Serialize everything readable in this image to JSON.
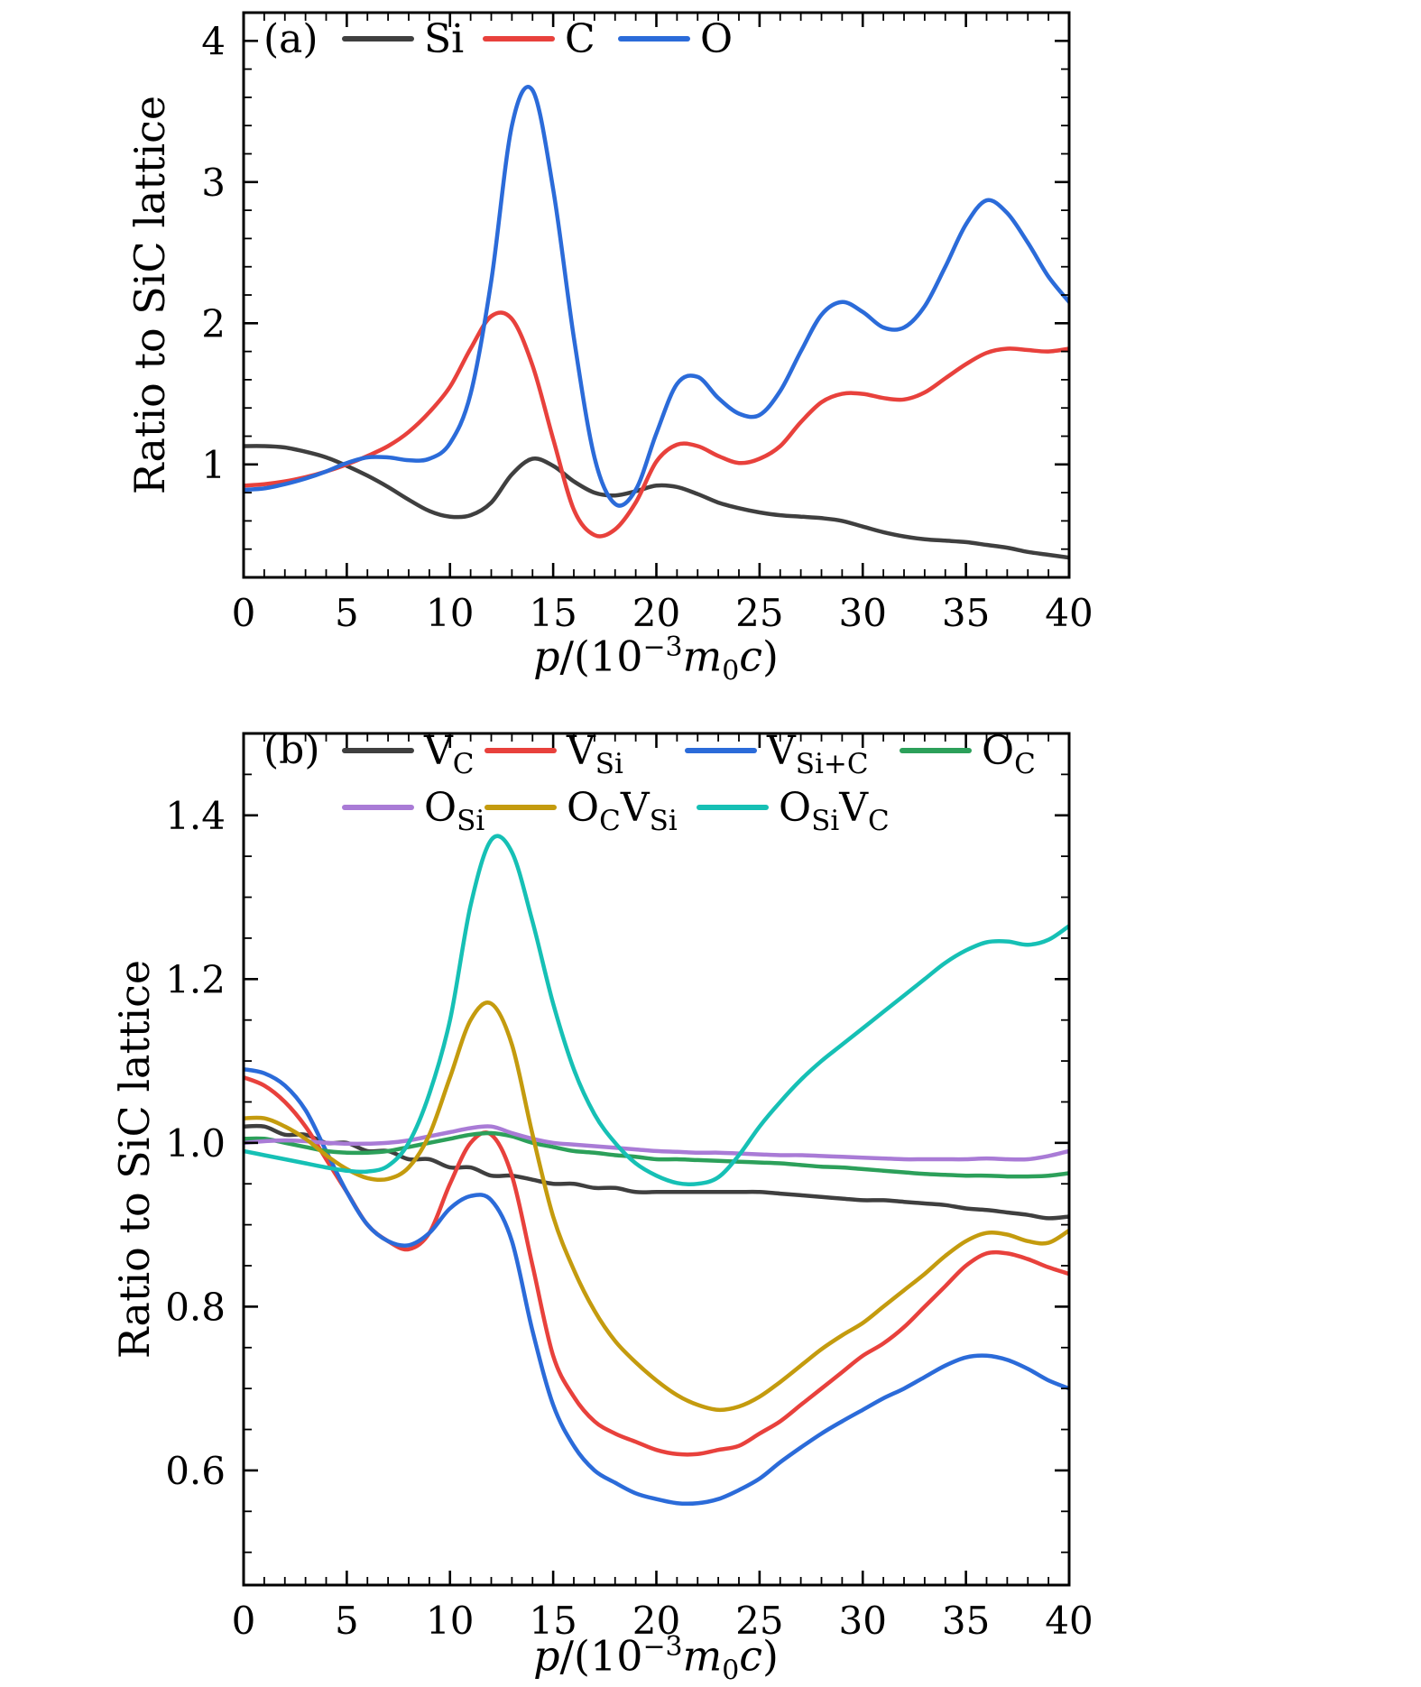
{
  "figure": {
    "background": "#ffffff",
    "axis_color": "#000000"
  },
  "chart_data": [
    {
      "type": "line",
      "panel_tag": "(a)",
      "ylabel": "Ratio to SiC lattice",
      "xlabel_segments": [
        {
          "t": "p",
          "i": 1
        },
        {
          "t": "/(10"
        },
        {
          "t": "−3",
          "pos": "sup"
        },
        {
          "t": "m",
          "i": 1
        },
        {
          "t": "0",
          "pos": "sub"
        },
        {
          "t": "c",
          "i": 1
        },
        {
          "t": ")"
        }
      ],
      "xlim": [
        0,
        40
      ],
      "ylim": [
        0.2,
        4.2
      ],
      "xticks": [
        0,
        5,
        10,
        15,
        20,
        25,
        30,
        35,
        40
      ],
      "xtick_labels": [
        "0",
        "5",
        "10",
        "15",
        "20",
        "25",
        "30",
        "35",
        "40"
      ],
      "yticks": [
        1,
        2,
        3,
        4
      ],
      "ytick_labels": [
        "1",
        "2",
        "3",
        "4"
      ],
      "x_minor_step": 1,
      "y_minor_step": 0.2,
      "grid": false,
      "legend_position": "top-inside",
      "legend_rows": [
        [
          0,
          1,
          2
        ]
      ],
      "x": [
        0,
        1,
        2,
        3,
        4,
        5,
        6,
        7,
        8,
        9,
        10,
        11,
        12,
        13,
        14,
        15,
        16,
        17,
        18,
        19,
        20,
        21,
        22,
        23,
        24,
        25,
        26,
        27,
        28,
        29,
        30,
        31,
        32,
        33,
        34,
        35,
        36,
        37,
        38,
        39,
        40
      ],
      "series": [
        {
          "name": "Si",
          "label_parts": [
            [
              "Si",
              ""
            ]
          ],
          "color": "#3f3f3f",
          "values": [
            1.13,
            1.13,
            1.12,
            1.09,
            1.05,
            0.99,
            0.92,
            0.84,
            0.75,
            0.67,
            0.63,
            0.64,
            0.73,
            0.93,
            1.04,
            0.99,
            0.88,
            0.8,
            0.78,
            0.81,
            0.85,
            0.84,
            0.79,
            0.73,
            0.69,
            0.66,
            0.64,
            0.63,
            0.62,
            0.6,
            0.56,
            0.52,
            0.49,
            0.47,
            0.46,
            0.45,
            0.43,
            0.41,
            0.38,
            0.36,
            0.34
          ]
        },
        {
          "name": "C",
          "label_parts": [
            [
              "C",
              ""
            ]
          ],
          "color": "#e8413c",
          "values": [
            0.85,
            0.86,
            0.88,
            0.91,
            0.95,
            1.0,
            1.06,
            1.13,
            1.23,
            1.37,
            1.55,
            1.82,
            2.05,
            2.03,
            1.7,
            1.18,
            0.68,
            0.5,
            0.54,
            0.73,
            1.02,
            1.14,
            1.13,
            1.06,
            1.01,
            1.04,
            1.13,
            1.3,
            1.44,
            1.5,
            1.5,
            1.47,
            1.46,
            1.51,
            1.61,
            1.71,
            1.79,
            1.82,
            1.81,
            1.8,
            1.82
          ]
        },
        {
          "name": "O",
          "label_parts": [
            [
              "O",
              ""
            ]
          ],
          "color": "#2b6bd9",
          "values": [
            0.82,
            0.83,
            0.86,
            0.9,
            0.95,
            1.01,
            1.05,
            1.05,
            1.03,
            1.04,
            1.15,
            1.5,
            2.3,
            3.4,
            3.65,
            2.95,
            1.9,
            1.05,
            0.72,
            0.82,
            1.22,
            1.57,
            1.62,
            1.47,
            1.36,
            1.35,
            1.52,
            1.8,
            2.06,
            2.15,
            2.08,
            1.97,
            1.97,
            2.12,
            2.4,
            2.7,
            2.87,
            2.78,
            2.57,
            2.33,
            2.15
          ]
        }
      ]
    },
    {
      "type": "line",
      "panel_tag": "(b)",
      "ylabel": "Ratio to SiC lattice",
      "xlabel_segments": [
        {
          "t": "p",
          "i": 1
        },
        {
          "t": "/(10"
        },
        {
          "t": "−3",
          "pos": "sup"
        },
        {
          "t": "m",
          "i": 1
        },
        {
          "t": "0",
          "pos": "sub"
        },
        {
          "t": "c",
          "i": 1
        },
        {
          "t": ")"
        }
      ],
      "xlim": [
        0,
        40
      ],
      "ylim": [
        0.46,
        1.5
      ],
      "xticks": [
        0,
        5,
        10,
        15,
        20,
        25,
        30,
        35,
        40
      ],
      "xtick_labels": [
        "0",
        "5",
        "10",
        "15",
        "20",
        "25",
        "30",
        "35",
        "40"
      ],
      "yticks": [
        0.6,
        0.8,
        1.0,
        1.2,
        1.4
      ],
      "ytick_labels": [
        "0.6",
        "0.8",
        "1.0",
        "1.2",
        "1.4"
      ],
      "x_minor_step": 1,
      "y_minor_step": 0.05,
      "grid": false,
      "legend_position": "top-inside",
      "legend_rows": [
        [
          0,
          1,
          2,
          3
        ],
        [
          4,
          5,
          6
        ]
      ],
      "x": [
        0,
        1,
        2,
        3,
        4,
        5,
        6,
        7,
        8,
        9,
        10,
        11,
        12,
        13,
        14,
        15,
        16,
        17,
        18,
        19,
        20,
        21,
        22,
        23,
        24,
        25,
        26,
        27,
        28,
        29,
        30,
        31,
        32,
        33,
        34,
        35,
        36,
        37,
        38,
        39,
        40
      ],
      "series": [
        {
          "name": "VC",
          "label_parts": [
            [
              "V",
              "C"
            ]
          ],
          "color": "#3f3f3f",
          "values": [
            1.02,
            1.02,
            1.01,
            1.01,
            1.0,
            1.0,
            0.99,
            0.99,
            0.98,
            0.98,
            0.97,
            0.97,
            0.96,
            0.96,
            0.955,
            0.95,
            0.95,
            0.945,
            0.945,
            0.94,
            0.94,
            0.94,
            0.94,
            0.94,
            0.94,
            0.94,
            0.938,
            0.936,
            0.934,
            0.932,
            0.93,
            0.93,
            0.928,
            0.926,
            0.924,
            0.92,
            0.918,
            0.915,
            0.912,
            0.908,
            0.91
          ]
        },
        {
          "name": "VSi",
          "label_parts": [
            [
              "V",
              "Si"
            ]
          ],
          "color": "#e8413c",
          "values": [
            1.08,
            1.07,
            1.05,
            1.02,
            0.98,
            0.94,
            0.9,
            0.88,
            0.87,
            0.89,
            0.95,
            1.0,
            1.01,
            0.96,
            0.85,
            0.74,
            0.69,
            0.66,
            0.645,
            0.635,
            0.625,
            0.62,
            0.62,
            0.625,
            0.63,
            0.645,
            0.66,
            0.68,
            0.7,
            0.72,
            0.74,
            0.755,
            0.775,
            0.8,
            0.825,
            0.85,
            0.865,
            0.865,
            0.858,
            0.848,
            0.84
          ]
        },
        {
          "name": "VSiC",
          "label_parts": [
            [
              "V",
              "Si+C"
            ]
          ],
          "color": "#2b6bd9",
          "values": [
            1.09,
            1.085,
            1.07,
            1.04,
            0.99,
            0.94,
            0.9,
            0.88,
            0.875,
            0.89,
            0.92,
            0.935,
            0.93,
            0.88,
            0.77,
            0.68,
            0.63,
            0.6,
            0.585,
            0.572,
            0.565,
            0.56,
            0.56,
            0.565,
            0.576,
            0.59,
            0.61,
            0.628,
            0.645,
            0.66,
            0.674,
            0.688,
            0.7,
            0.714,
            0.728,
            0.738,
            0.74,
            0.735,
            0.724,
            0.71,
            0.7
          ]
        },
        {
          "name": "OC",
          "label_parts": [
            [
              "O",
              "C"
            ]
          ],
          "color": "#2ca05a",
          "values": [
            1.005,
            1.005,
            1.0,
            0.995,
            0.99,
            0.988,
            0.988,
            0.99,
            0.995,
            1.0,
            1.005,
            1.01,
            1.012,
            1.008,
            1.0,
            0.995,
            0.99,
            0.988,
            0.985,
            0.983,
            0.98,
            0.98,
            0.979,
            0.978,
            0.977,
            0.976,
            0.975,
            0.973,
            0.971,
            0.97,
            0.968,
            0.966,
            0.964,
            0.962,
            0.961,
            0.96,
            0.96,
            0.959,
            0.959,
            0.96,
            0.963
          ]
        },
        {
          "name": "OSi",
          "label_parts": [
            [
              "O",
              "Si"
            ]
          ],
          "color": "#a97bd6",
          "values": [
            1.0,
            1.002,
            1.003,
            1.002,
            1.0,
            0.999,
            0.999,
            1.0,
            1.003,
            1.008,
            1.013,
            1.018,
            1.02,
            1.012,
            1.005,
            1.0,
            0.998,
            0.996,
            0.994,
            0.992,
            0.99,
            0.989,
            0.988,
            0.988,
            0.987,
            0.986,
            0.985,
            0.985,
            0.984,
            0.983,
            0.982,
            0.981,
            0.98,
            0.98,
            0.98,
            0.98,
            0.981,
            0.98,
            0.98,
            0.984,
            0.99
          ]
        },
        {
          "name": "OCVSi",
          "label_parts": [
            [
              "O",
              "C"
            ],
            [
              "V",
              "Si"
            ]
          ],
          "color": "#c49b0e",
          "values": [
            1.03,
            1.03,
            1.02,
            1.005,
            0.985,
            0.968,
            0.957,
            0.956,
            0.97,
            1.01,
            1.08,
            1.15,
            1.17,
            1.12,
            1.01,
            0.91,
            0.845,
            0.795,
            0.758,
            0.732,
            0.71,
            0.692,
            0.68,
            0.674,
            0.678,
            0.69,
            0.708,
            0.728,
            0.748,
            0.765,
            0.78,
            0.8,
            0.82,
            0.84,
            0.862,
            0.88,
            0.89,
            0.888,
            0.88,
            0.878,
            0.893
          ]
        },
        {
          "name": "OSiVC",
          "label_parts": [
            [
              "O",
              "Si"
            ],
            [
              "V",
              "C"
            ]
          ],
          "color": "#16c0b5",
          "values": [
            0.99,
            0.985,
            0.98,
            0.975,
            0.97,
            0.966,
            0.965,
            0.972,
            1.0,
            1.06,
            1.15,
            1.29,
            1.37,
            1.355,
            1.27,
            1.17,
            1.09,
            1.035,
            1.0,
            0.975,
            0.96,
            0.951,
            0.95,
            0.958,
            0.985,
            1.02,
            1.05,
            1.077,
            1.1,
            1.12,
            1.14,
            1.16,
            1.18,
            1.2,
            1.22,
            1.235,
            1.245,
            1.246,
            1.242,
            1.248,
            1.265
          ]
        }
      ]
    }
  ]
}
